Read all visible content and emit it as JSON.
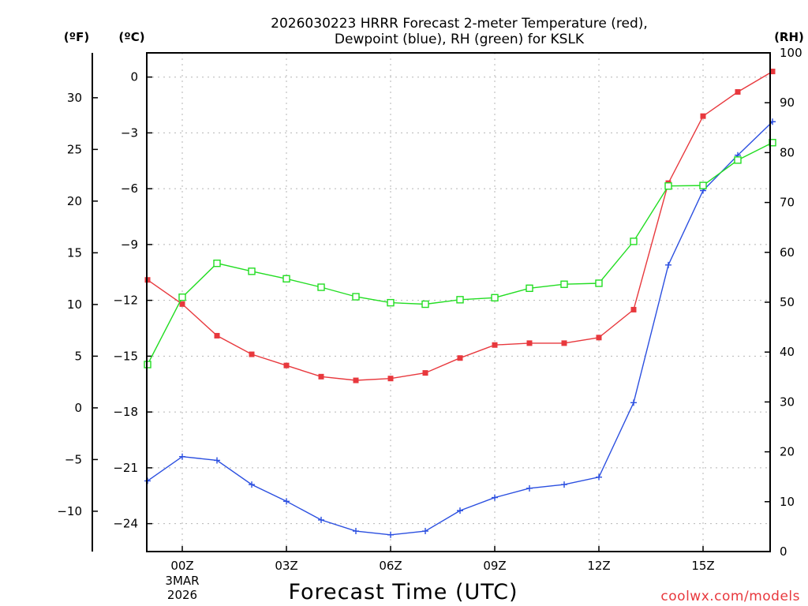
{
  "chart_data": {
    "type": "line",
    "title_lines": [
      "2026030223 HRRR Forecast 2-meter Temperature (red),",
      "Dewpoint (blue), RH (green) for KSLK"
    ],
    "xlabel": "Forecast Time (UTC)",
    "credit": "coolwx.com/models",
    "units": {
      "fahrenheit": "(ºF)",
      "celsius": "(ºC)",
      "rh": "(RH)"
    },
    "x_hours": [
      23,
      0,
      1,
      2,
      3,
      4,
      5,
      6,
      7,
      8,
      9,
      10,
      11,
      12,
      13,
      14,
      15,
      16,
      17
    ],
    "x_ticks": [
      {
        "label": "00Z",
        "index": 1,
        "extra": [
          "3MAR",
          "2026"
        ]
      },
      {
        "label": "03Z",
        "index": 4
      },
      {
        "label": "06Z",
        "index": 7
      },
      {
        "label": "09Z",
        "index": 10
      },
      {
        "label": "12Z",
        "index": 13
      },
      {
        "label": "15Z",
        "index": 16
      }
    ],
    "celsius_axis": {
      "ylim": [
        -25.5,
        1.3
      ],
      "ticks": [
        0,
        -3,
        -6,
        -9,
        -12,
        -15,
        -18,
        -21,
        -24
      ]
    },
    "fahrenheit_axis": {
      "ticks": [
        30,
        25,
        20,
        15,
        10,
        5,
        0,
        -5,
        -10
      ],
      "tick_labels": [
        "30",
        "25",
        "20",
        "15",
        "10",
        "5",
        "0",
        "−5",
        "−10"
      ]
    },
    "rh_axis": {
      "ylim": [
        0,
        100
      ],
      "ticks": [
        0,
        10,
        20,
        30,
        40,
        50,
        60,
        70,
        80,
        90,
        100
      ]
    },
    "celsius_tick_labels": [
      "0",
      "−3",
      "−6",
      "−9",
      "−12",
      "−15",
      "−18",
      "−21",
      "−24"
    ],
    "series": [
      {
        "name": "Temperature",
        "axis": "celsius",
        "color": "#e8383d",
        "marker": "filled-square",
        "values": [
          -10.9,
          -12.2,
          -13.9,
          -14.9,
          -15.5,
          -16.1,
          -16.3,
          -16.2,
          -15.9,
          -15.1,
          -14.4,
          -14.3,
          -14.3,
          -14.0,
          -12.5,
          -5.7,
          -2.1,
          -0.8,
          0.3
        ]
      },
      {
        "name": "Dewpoint",
        "axis": "celsius",
        "color": "#2b4fe0",
        "marker": "plus",
        "values": [
          -21.7,
          -20.4,
          -20.6,
          -21.9,
          -22.8,
          -23.8,
          -24.4,
          -24.6,
          -24.4,
          -23.3,
          -22.6,
          -22.1,
          -21.9,
          -21.5,
          -17.5,
          -10.1,
          -6.1,
          -4.2,
          -2.4
        ]
      },
      {
        "name": "RH",
        "axis": "rh",
        "color": "#22dd22",
        "marker": "open-square",
        "values": [
          37.5,
          51.0,
          57.8,
          56.2,
          54.7,
          53.0,
          51.1,
          49.9,
          49.6,
          50.5,
          50.9,
          52.8,
          53.6,
          53.8,
          62.2,
          73.3,
          73.4,
          78.5,
          82.0
        ]
      }
    ]
  }
}
